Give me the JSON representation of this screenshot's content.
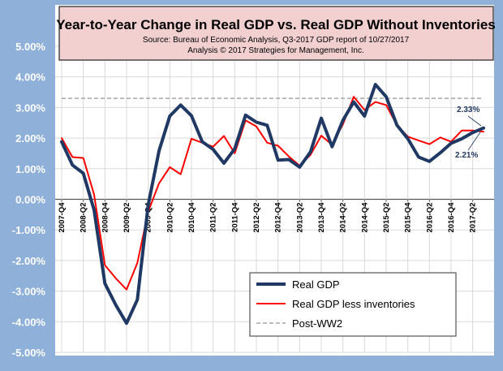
{
  "chart_data": {
    "type": "line",
    "title": "Year-to-Year Change in Real GDP vs. Real GDP Without Inventories",
    "subtitle_lines": [
      "Source: Bureau of Economic Analysis, Q3-2017 GDP report of 10/27/2017",
      "Analysis © 2017 Strategies for Management, Inc."
    ],
    "xlabel": "",
    "ylabel": "",
    "ylim": [
      -5,
      5
    ],
    "y_tick_values": [
      -5,
      -4,
      -3,
      -2,
      -1,
      0,
      1,
      2,
      3,
      4,
      5
    ],
    "y_tick_labels": [
      "-5.00%",
      "-4.00%",
      "-3.00%",
      "-2.00%",
      "-1.00%",
      "0.00%",
      "1.00%",
      "2.00%",
      "3.00%",
      "4.00%",
      "5.00%"
    ],
    "grid": true,
    "legend_position": "bottom-right",
    "categories": [
      "2007-Q4",
      "2008-Q1",
      "2008-Q2",
      "2008-Q3",
      "2008-Q4",
      "2009-Q1",
      "2009-Q2",
      "2009-Q3",
      "2009-Q4",
      "2010-Q1",
      "2010-Q2",
      "2010-Q3",
      "2010-Q4",
      "2011-Q1",
      "2011-Q2",
      "2011-Q3",
      "2011-Q4",
      "2012-Q1",
      "2012-Q2",
      "2012-Q3",
      "2012-Q4",
      "2013-Q1",
      "2013-Q2",
      "2013-Q3",
      "2013-Q4",
      "2014-Q1",
      "2014-Q2",
      "2014-Q3",
      "2014-Q4",
      "2015-Q1",
      "2015-Q2",
      "2015-Q3",
      "2015-Q4",
      "2016-Q1",
      "2016-Q2",
      "2016-Q3",
      "2016-Q4",
      "2017-Q1",
      "2017-Q2",
      "2017-Q3"
    ],
    "x_tick_labels": [
      "2007-Q4",
      "2008-Q2",
      "2008-Q4",
      "2009-Q2",
      "2009-Q4",
      "2010-Q2",
      "2010-Q4",
      "2011-Q2",
      "2011-Q4",
      "2012-Q2",
      "2012-Q4",
      "2013-Q2",
      "2013-Q4",
      "2014-Q2",
      "2014-Q4",
      "2015-Q2",
      "2015-Q4",
      "2016-Q2",
      "2016-Q4",
      "2017-Q2"
    ],
    "series": [
      {
        "name": "Real GDP",
        "color": "#1f3864",
        "values": [
          1.88,
          1.12,
          0.85,
          -0.35,
          -2.75,
          -3.45,
          -4.05,
          -3.28,
          -0.18,
          1.58,
          2.72,
          3.08,
          2.73,
          1.88,
          1.63,
          1.18,
          1.65,
          2.75,
          2.52,
          2.42,
          1.28,
          1.3,
          1.05,
          1.55,
          2.65,
          1.72,
          2.58,
          3.18,
          2.72,
          3.75,
          3.35,
          2.42,
          1.98,
          1.38,
          1.24,
          1.52,
          1.83,
          1.98,
          2.18,
          2.33
        ]
      },
      {
        "name": "Real GDP less inventories",
        "color": "#ff0000",
        "values": [
          2.0,
          1.38,
          1.35,
          0.15,
          -2.15,
          -2.58,
          -2.95,
          -2.08,
          -0.4,
          0.52,
          1.05,
          0.82,
          1.98,
          1.85,
          1.72,
          2.07,
          1.5,
          2.58,
          2.38,
          1.85,
          1.75,
          1.4,
          1.1,
          1.45,
          2.08,
          1.78,
          2.45,
          3.35,
          2.92,
          3.18,
          3.08,
          2.42,
          2.05,
          1.92,
          1.8,
          2.02,
          1.88,
          2.25,
          2.25,
          2.21
        ]
      }
    ],
    "reference_line": {
      "name": "Post-WW2",
      "value": 3.3,
      "color": "#a6a6a6"
    },
    "annotations": [
      "2.33%",
      "2.21%"
    ],
    "legend": [
      "Real GDP",
      "Real GDP less inventories",
      "Post-WW2"
    ]
  }
}
